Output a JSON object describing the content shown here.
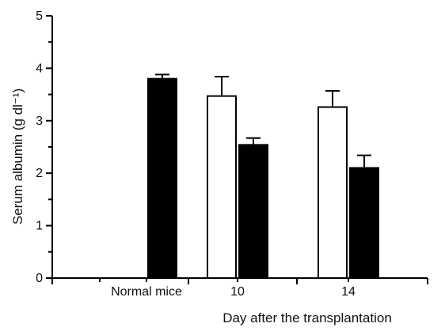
{
  "chart_data": {
    "type": "bar",
    "title": "",
    "ylabel": "Serum albumin (g dl⁻¹)",
    "xlabel": "Day after the transplantation",
    "ylim": [
      0,
      5
    ],
    "yticks": [
      "0",
      "1",
      "2",
      "3",
      "4",
      "5"
    ],
    "categories": [
      "Normal mice",
      "10",
      "14"
    ],
    "series": [
      {
        "fill": "#ffffff",
        "values": [
          null,
          3.47,
          3.26
        ],
        "errors": [
          null,
          0.37,
          0.31
        ]
      },
      {
        "fill": "#000000",
        "values": [
          3.8,
          2.54,
          2.1
        ],
        "errors": [
          0.08,
          0.13,
          0.24
        ]
      }
    ],
    "legend": "none",
    "grid": false
  }
}
